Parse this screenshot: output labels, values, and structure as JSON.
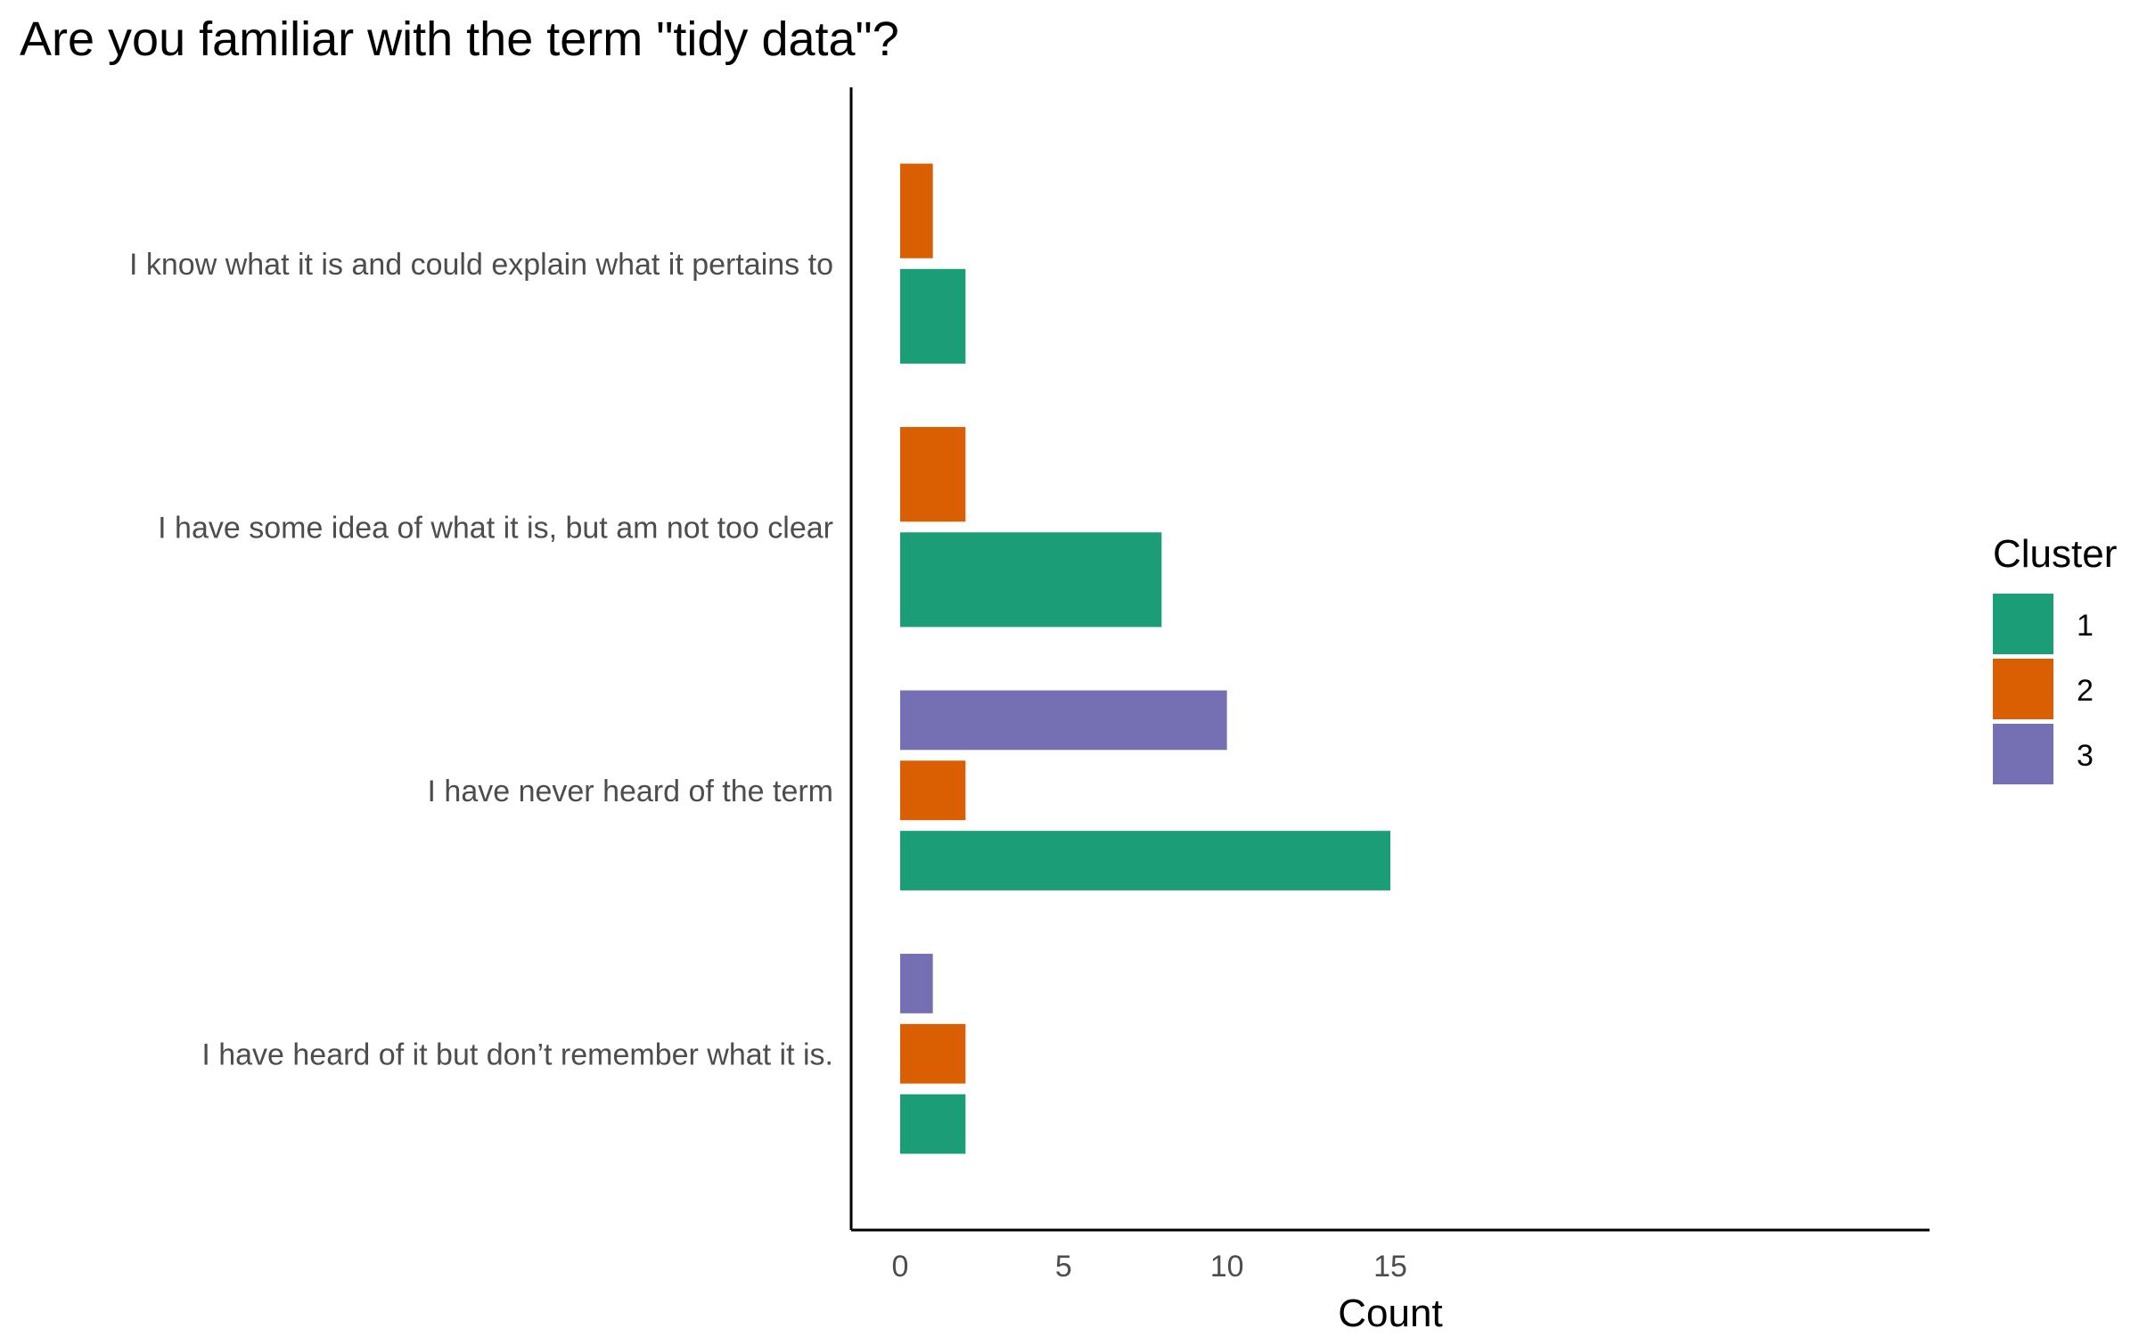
{
  "chart_data": {
    "type": "bar",
    "orientation": "horizontal",
    "title": "Are you familiar with the term \"tidy data\"?",
    "xlabel": "Count",
    "ylabel": "",
    "xlim": [
      -1.5,
      31.5
    ],
    "xticks": [
      0,
      5,
      10,
      15
    ],
    "grid": false,
    "legend_title": "Cluster",
    "legend_position": "right",
    "categories": [
      "I know what it is and could explain what it pertains to",
      "I have some idea of what it is, but am not too clear",
      "I have never heard of the term",
      "I have heard of it but don’t remember what it is."
    ],
    "series": [
      {
        "name": "1",
        "color": "#1b9e77",
        "values": [
          2,
          8,
          15,
          2
        ]
      },
      {
        "name": "2",
        "color": "#d95f02",
        "values": [
          1,
          2,
          2,
          2
        ]
      },
      {
        "name": "3",
        "color": "#7570b3",
        "values": [
          null,
          null,
          10,
          1
        ]
      }
    ]
  }
}
